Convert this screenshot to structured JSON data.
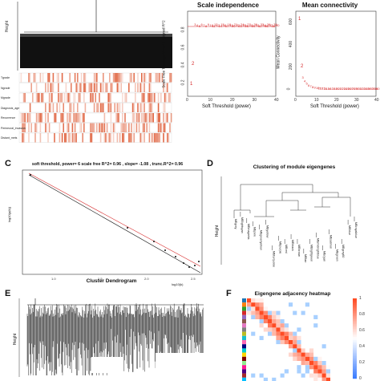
{
  "panel_a": {
    "traits": [
      "Tgrade",
      "Ngrade",
      "Mgrade",
      "Diagnosis_age",
      "Recurrence",
      "Perineural_invasion",
      "Distant_mets"
    ],
    "yaxis_top": "Height",
    "yaxis_bottom": "Height"
  },
  "panel_b1": {
    "title": "Scale independence",
    "xlabel": "Soft Threshold (power)",
    "ylabel": "Scale Free Topology Model Fit,signed R^2",
    "xticks": [
      "0",
      "10",
      "20",
      "30",
      "40"
    ],
    "yticks": [
      "0.2",
      "0.4",
      "0.6",
      "0.8"
    ],
    "points_label": "2"
  },
  "panel_b2": {
    "title": "Mean connectivity",
    "xlabel": "Soft Threshold (power)",
    "ylabel": "Mean Connectivity",
    "xticks": [
      "0",
      "10",
      "20",
      "30",
      "40"
    ],
    "yticks": [
      "0",
      "200",
      "400",
      "600"
    ],
    "first_label": "1",
    "second_label": "2"
  },
  "panel_c": {
    "letter": "C",
    "title": "soft threshold, power= 6  scale free R^2= 0.96 , slope= -1.08 , trunc.R^2= 0.96",
    "ylabel": "log10(p(k))",
    "xlabel": "log10(k)",
    "xticks": [
      "1.0",
      "1.5",
      "2.0",
      "2.5"
    ]
  },
  "panel_d": {
    "letter": "D",
    "title": "Clustering of module eigengenes",
    "ylabel": "Height",
    "modules": [
      "MEgrey",
      "MElightcyan",
      "MEmagenta",
      "MEpink",
      "MEgreenyellow",
      "MEyellow",
      "MEturquoise",
      "MEpurple",
      "MEred",
      "MEblack",
      "MEbrown",
      "MEtan",
      "MElightgreen",
      "MEmidnightblue",
      "MEcyan",
      "MEsalmon",
      "MEgreen",
      "MEgrey60",
      "MEblue",
      "MEroyalblue"
    ]
  },
  "panel_e": {
    "letter": "E",
    "title": "Cluster Dendrogram",
    "ylabel": "Height"
  },
  "panel_f": {
    "letter": "F",
    "title": "Eigengene adjacency heatmap",
    "scale_ticks": [
      "1",
      "0.8",
      "0.6",
      "0.4",
      "0.2",
      "0"
    ],
    "colors": {
      "high": "#d7301f",
      "mid": "#ffffff",
      "low": "#3a7dc0"
    }
  }
}
